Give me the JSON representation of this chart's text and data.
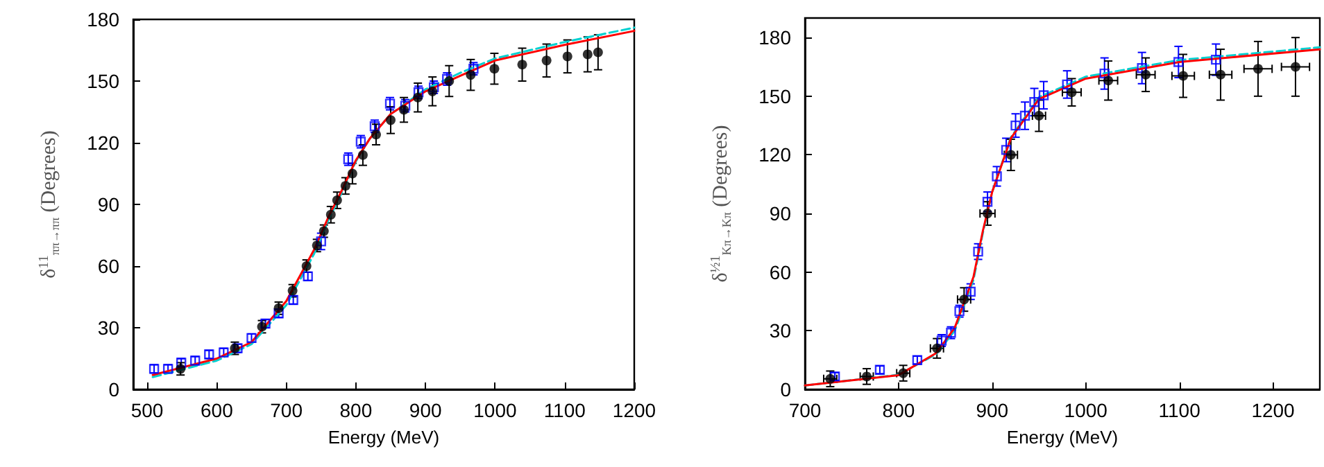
{
  "chart_data": [
    {
      "type": "scatter",
      "ylabel": "δ$^{11}$$_{ππ→ππ}$ (Degrees)",
      "xlabel": "Energy (MeV)",
      "xlim": [
        480,
        1200
      ],
      "xticks": [
        500,
        600,
        700,
        800,
        900,
        1000,
        1100,
        1200
      ],
      "ylim": [
        0,
        180
      ],
      "yticks": [
        0,
        30,
        60,
        90,
        120,
        150,
        180
      ],
      "series": [
        {
          "type": "line",
          "color": "#00d0d0",
          "line_style": "dashed",
          "marker": "none",
          "x": [
            508,
            600,
            650,
            700,
            740,
            760,
            780,
            800,
            820,
            850,
            900,
            950,
            1000,
            1100,
            1200
          ],
          "values": [
            6,
            14,
            22,
            41,
            66,
            82,
            96,
            111,
            122,
            134,
            146,
            154,
            161,
            169,
            176
          ]
        },
        {
          "type": "line",
          "color": "#ff0000",
          "line_style": "solid",
          "marker": "none",
          "x": [
            508,
            600,
            650,
            700,
            740,
            760,
            780,
            800,
            820,
            850,
            900,
            950,
            1000,
            1100,
            1200
          ],
          "values": [
            7,
            15,
            23,
            43,
            68,
            83.5,
            97,
            111.5,
            122,
            134,
            145,
            152.6,
            160,
            167.6,
            174.4
          ]
        },
        {
          "type": "scatter",
          "color": "#0000ff",
          "marker": "square",
          "x": [
            510,
            530,
            549,
            569,
            589,
            610,
            630,
            650,
            670,
            689,
            710,
            731,
            750,
            789,
            807,
            827,
            849,
            871,
            890,
            912,
            931,
            969
          ],
          "values": [
            10,
            10,
            13,
            14,
            17,
            18,
            20,
            25,
            32,
            37,
            43.5,
            55,
            72,
            112,
            120.5,
            128,
            139,
            138,
            144.5,
            147,
            151,
            156
          ],
          "errors": [
            2,
            2,
            2,
            2,
            2,
            2,
            2,
            2,
            2,
            2,
            2,
            2,
            4,
            3,
            3,
            3,
            3,
            3,
            3,
            3,
            3,
            3
          ]
        },
        {
          "type": "scatter",
          "color": "#000000",
          "marker": "circle",
          "x": [
            548,
            626,
            665,
            689,
            709,
            729,
            744,
            754,
            764,
            773,
            785,
            795,
            810,
            829,
            850,
            869,
            889,
            910,
            934,
            965,
            999,
            1039,
            1074,
            1104,
            1133,
            1148
          ],
          "values": [
            10,
            20,
            30.5,
            39.5,
            48,
            60,
            70,
            77,
            85,
            92,
            99,
            105,
            114,
            124,
            131,
            136,
            142,
            145,
            150,
            153,
            156,
            158,
            160,
            162,
            163,
            164
          ],
          "errors": [
            3,
            3,
            3,
            3,
            3,
            3,
            3,
            3,
            4,
            4,
            4,
            5,
            5,
            5,
            6.5,
            6,
            7,
            7,
            7.5,
            7.5,
            7.5,
            8,
            8,
            8,
            8.5,
            8.5
          ]
        }
      ]
    },
    {
      "type": "scatter",
      "ylabel": "δ$^{½1}$$_{Kπ→Kπ}$ (Degrees)",
      "xlabel": "Energy (MeV)",
      "xlim": [
        700,
        1250
      ],
      "xticks": [
        700,
        800,
        900,
        1000,
        1100,
        1200
      ],
      "ylim": [
        0,
        190
      ],
      "yticks": [
        0,
        30,
        60,
        90,
        120,
        150,
        180
      ],
      "series": [
        {
          "type": "line",
          "color": "#00d0d0",
          "line_style": "dashed",
          "marker": "none",
          "x": [
            700,
            800,
            840,
            860,
            880,
            890,
            900,
            920,
            950,
            1000,
            1100,
            1250
          ],
          "values": [
            2,
            7.5,
            18,
            30,
            56,
            80,
            101,
            129,
            149.5,
            160,
            168.5,
            175
          ]
        },
        {
          "type": "line",
          "color": "#ff0000",
          "line_style": "solid",
          "marker": "none",
          "x": [
            700,
            800,
            840,
            860,
            880,
            890,
            900,
            920,
            950,
            1000,
            1100,
            1250
          ],
          "values": [
            2,
            7.3,
            18.5,
            31.5,
            57.5,
            81,
            101,
            128.5,
            148.6,
            159,
            167.5,
            174
          ]
        },
        {
          "type": "scatter",
          "color": "#0000ff",
          "marker": "square",
          "x": [
            732,
            780,
            820,
            846,
            856,
            865,
            877,
            885,
            895,
            905,
            915,
            925,
            935,
            945,
            955,
            980,
            1020,
            1060,
            1099,
            1139
          ],
          "values": [
            6.6,
            10,
            15,
            25,
            29,
            40,
            50,
            70.5,
            96,
            109,
            122.5,
            135,
            140,
            147,
            150.5,
            156,
            161.6,
            164.4,
            167.5,
            168.7
          ],
          "errors": [
            2,
            2,
            2,
            3,
            3,
            3,
            4,
            4,
            5,
            5,
            6,
            6,
            7,
            7,
            7,
            7,
            8,
            8,
            8,
            8
          ]
        },
        {
          "type": "scatter",
          "color": "#000000",
          "marker": "circle",
          "x": [
            727,
            766,
            805,
            841,
            870,
            895,
            920,
            950,
            985,
            1024,
            1064,
            1104,
            1144,
            1184,
            1224
          ],
          "values": [
            5.4,
            6.6,
            8.3,
            21,
            46,
            90,
            120,
            140,
            152,
            158,
            161,
            160.4,
            161,
            164,
            165
          ],
          "errors": [
            4,
            4,
            4,
            5,
            6,
            6,
            8,
            8,
            7,
            10,
            8.6,
            11,
            13,
            14,
            15
          ],
          "xerrors": [
            7,
            7,
            7,
            7,
            7,
            8,
            7,
            7,
            10,
            10,
            10,
            12,
            12,
            15,
            15
          ]
        }
      ]
    }
  ]
}
